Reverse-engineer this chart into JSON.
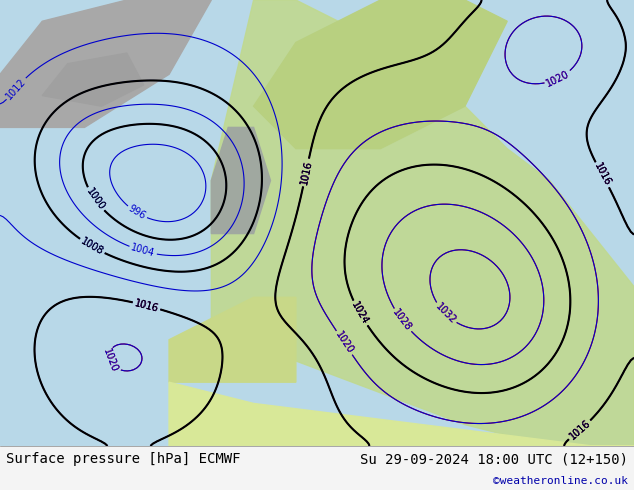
{
  "title_left": "Surface pressure [hPa] ECMWF",
  "title_right": "Su 29-09-2024 18:00 UTC (12+150)",
  "credit": "©weatheronline.co.uk",
  "bg_color": "#e8e8e8",
  "land_color_green": "#c8e6a0",
  "land_color_gray": "#b0b0b0",
  "sea_color": "#d0e8f0",
  "contour_color_blue": "#0000cc",
  "contour_color_red": "#cc0000",
  "contour_color_black": "#000000",
  "footer_bg": "#f0f0f0",
  "footer_text_color": "#000000",
  "credit_color": "#0000aa",
  "font_size_footer": 10,
  "font_size_contour": 8,
  "figsize": [
    6.34,
    4.9
  ],
  "dpi": 100
}
